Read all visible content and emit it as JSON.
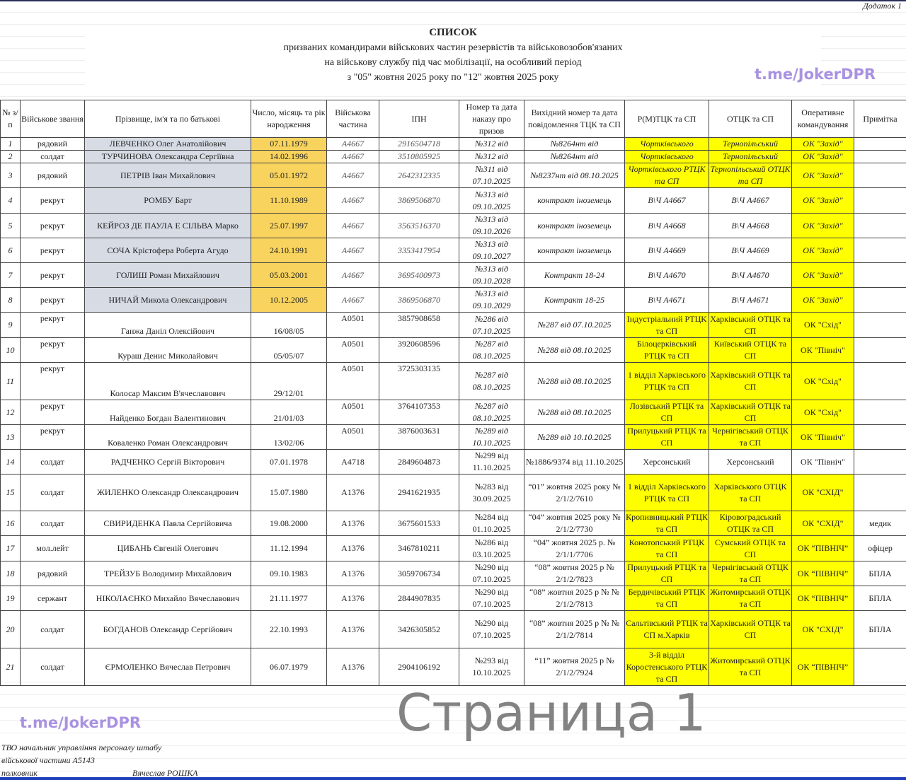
{
  "document": {
    "addendum": "Додаток 1",
    "title": "СПИСОК",
    "subtitle_lines": [
      "призваних командирами військових частин резервістів та військовозобов'язаних",
      "на військову службу під час мобілізації, на особливий період",
      "з \"05\" жовтня 2025 року по \"12\" жовтня 2025 року"
    ],
    "watermark_channel": "t.me/JokerDPR",
    "watermark_page": "Страница 1"
  },
  "colors": {
    "highlight_yellow": "#ffff00",
    "name_bg": "#d6dbe4",
    "dob_bg": "#f8d35e",
    "watermark": "#a992e0"
  },
  "table": {
    "headers": [
      "№ з/п",
      "Військове звання",
      "Прізвище, ім'я та по батькові",
      "Число, місяць та рік народження",
      "Військова частина",
      "ІПН",
      "Номер та дата наказу про призов",
      "Вихідний номер та дата повідомлення ТЦК та СП",
      "Р(М)ТЦК та СП",
      "ОТЦК та СП",
      "Оперативне командування",
      "Примітка"
    ],
    "rows": [
      {
        "cells": [
          "1",
          "рядовий",
          "ЛЕВЧЕНКО Олег Анатолійович",
          "07.11.1979",
          "А4667",
          "2916504718",
          "№312 від",
          "№8264нт від",
          "Чортківського",
          "Тернопільський",
          "ОК \"Захід\"",
          ""
        ],
        "highlight": [
          8,
          9,
          10
        ]
      },
      {
        "cells": [
          "2",
          "солдат",
          "ТУРЧИНОВА Олександра Сергіївна",
          "14.02.1996",
          "А4667",
          "3510805925",
          "№312 від",
          "№8264нт від",
          "Чортківського",
          "Тернопільський",
          "ОК \"Захід\"",
          ""
        ],
        "highlight": [
          8,
          9,
          10
        ]
      },
      {
        "cells": [
          "3",
          "рядовий",
          "ПЕТРІВ Іван Михайлович",
          "05.01.1972",
          "А4667",
          "2642312335",
          "№311 від 07.10.2025",
          "№8237нт від 08.10.2025",
          "Чортківського РТЦК та СП",
          "Тернопільський ОТЦК та СП",
          "ОК \"Захід\"",
          ""
        ],
        "highlight": [
          8,
          9,
          10
        ]
      },
      {
        "cells": [
          "4",
          "рекрут",
          "РОМБУ Барт",
          "11.10.1989",
          "А4667",
          "3869506870",
          "№313 від 09.10.2025",
          "контракт іноземець",
          "В\\Ч А4667",
          "В\\Ч А4667",
          "ОК \"Захід\"",
          ""
        ],
        "highlight": [
          10
        ]
      },
      {
        "cells": [
          "5",
          "рекрут",
          "КЕЙРОЗ ДЕ ПАУЛА Е СІЛЬВА Марко",
          "25.07.1997",
          "А4667",
          "3563516370",
          "№313 від 09.10.2026",
          "контракт іноземець",
          "В\\Ч А4668",
          "В\\Ч А4668",
          "ОК \"Захід\"",
          ""
        ],
        "highlight": [
          10
        ]
      },
      {
        "cells": [
          "6",
          "рекрут",
          "СОЧА Крістофера Роберта Агудо",
          "24.10.1991",
          "А4667",
          "3353417954",
          "№313 від 09.10.2027",
          "контракт іноземець",
          "В\\Ч А4669",
          "В\\Ч А4669",
          "ОК \"Захід\"",
          ""
        ],
        "highlight": [
          10
        ]
      },
      {
        "cells": [
          "7",
          "рекрут",
          "ГОЛИШ Роман Михайлович",
          "05.03.2001",
          "А4667",
          "3695400973",
          "№313 від 09.10.2028",
          "Контракт 18-24",
          "В\\Ч А4670",
          "В\\Ч А4670",
          "ОК \"Захід\"",
          ""
        ],
        "highlight": [
          10
        ]
      },
      {
        "cells": [
          "8",
          "рекрут",
          "НИЧАЙ Микола Олександрович",
          "10.12.2005",
          "А4667",
          "3869506870",
          "№313 від 09.10.2029",
          "Контракт 18-25",
          "В\\Ч А4671",
          "В\\Ч А4671",
          "ОК \"Захід\"",
          ""
        ],
        "highlight": [
          10
        ]
      },
      {
        "cells": [
          "9",
          "рекрут",
          "Ганжа Даніл Олексійович",
          "16/08/05",
          "А0501",
          "3857908658",
          "№286 від 07.10.2025",
          "№287 від 07.10.2025",
          "Індустріальний РТЦК та СП",
          "Харківський ОТЦК та СП",
          "ОК \"Схід\"",
          ""
        ],
        "highlight": [
          8,
          9,
          10
        ]
      },
      {
        "cells": [
          "10",
          "рекрут",
          "Кураш Денис Миколайович",
          "05/05/07",
          "А0501",
          "3920608596",
          "№287 від 08.10.2025",
          "№288 від 08.10.2025",
          "Білоцерківський РТЦК та СП",
          "Київський ОТЦК та СП",
          "ОК \"Північ\"",
          ""
        ],
        "highlight": [
          8,
          9,
          10
        ]
      },
      {
        "cells": [
          "11",
          "рекрут",
          "Колосар Максим В'ячеславович",
          "29/12/01",
          "А0501",
          "3725303135",
          "№287 від 08.10.2025",
          "№288 від 08.10.2025",
          "1 відділ Харківського РТЦК та СП",
          "Харківський ОТЦК та СП",
          "ОК \"Схід\"",
          ""
        ],
        "highlight": [
          8,
          9,
          10
        ]
      },
      {
        "cells": [
          "12",
          "рекрут",
          "Найденко Богдан Валентинович",
          "21/01/03",
          "А0501",
          "3764107353",
          "№287 від 08.10.2025",
          "№288 від 08.10.2025",
          "Лозівський РТЦК та СП",
          "Харківський ОТЦК та СП",
          "ОК \"Схід\"",
          ""
        ],
        "highlight": [
          8,
          9,
          10
        ]
      },
      {
        "cells": [
          "13",
          "рекрут",
          "Коваленко Роман Олександрович",
          "13/02/06",
          "А0501",
          "3876003631",
          "№289 від 10.10.2025",
          "№289 від 10.10.2025",
          "Прилуцький РТЦК та СП",
          "Чернігівський ОТЦК та СП",
          "ОК \"Північ\"",
          ""
        ],
        "highlight": [
          8,
          9,
          10
        ]
      },
      {
        "cells": [
          "14",
          "солдат",
          "РАДЧЕНКО Сергій Вікторович",
          "07.01.1978",
          "А4718",
          "2849604873",
          "№299 від 11.10.2025",
          "№1886/9374  від 11.10.2025",
          "Херсонський",
          "Херсонський",
          "ОК \"Північ\"",
          ""
        ],
        "highlight": []
      },
      {
        "cells": [
          "15",
          "солдат",
          "ЖИЛЕНКО Олександр Олександрович",
          "15.07.1980",
          "А1376",
          "2941621935",
          "№283 від 30.09.2025",
          "“01” жовтня 2025 року № 2/1/2/7610",
          "1 відділ Харківського РТЦК та СП",
          "Харківського ОТЦК та СП",
          "ОК \"СХІД\"",
          ""
        ],
        "highlight": [
          8,
          9,
          10
        ]
      },
      {
        "cells": [
          "16",
          "солдат",
          "СВИРИДЕНКА Павла Сергійовича",
          "19.08.2000",
          "А1376",
          "3675601533",
          "№284 від 01.10.2025",
          "“04” жовтня 2025 року № 2/1/2/7730",
          "Кропивницький РТЦК та СП",
          "Кіровоградський ОТЦК та СП",
          "ОК \"СХІД\"",
          "медик"
        ],
        "highlight": [
          8,
          9,
          10
        ]
      },
      {
        "cells": [
          "17",
          "мол.лейт",
          "ЦИБАНЬ Євгеній Олегович",
          "11.12.1994",
          "А1376",
          "3467810211",
          "№286 від 03.10.2025",
          "“04” жовтня 2025 р. № 2/1/1/7706",
          "Конотопський РТЦК та СП",
          "Сумський ОТЦК та СП",
          "ОК “ПІВНІЧ”",
          "офіцер"
        ],
        "highlight": [
          8,
          9,
          10
        ]
      },
      {
        "cells": [
          "18",
          "рядовий",
          "ТРЕЙЗУБ Володимир Михайлович",
          "09.10.1983",
          "А1376",
          "3059706734",
          "№290 від 07.10.2025",
          "“08” жовтня 2025 р № 2/1/2/7823",
          "Прилуцький РТЦК та СП",
          "Чернігівський ОТЦК та СП",
          "ОК “ПІВНІЧ”",
          "БПЛА"
        ],
        "highlight": [
          8,
          9,
          10
        ]
      },
      {
        "cells": [
          "19",
          "сержант",
          "НІКОЛАЄНКО Михайло Вячеславович",
          "21.11.1977",
          "А1376",
          "2844907835",
          "№290 від 07.10.2025",
          "“08” жовтня 2025 р № № 2/1/2/7813",
          "Бердичівський РТЦК та СП",
          "Житомирський ОТЦК та СП",
          "ОК “ПІВНІЧ”",
          "БПЛА"
        ],
        "highlight": [
          8,
          9,
          10
        ]
      },
      {
        "cells": [
          "20",
          "солдат",
          "БОГДАНОВ Олександр Сергійович",
          "22.10.1993",
          "А1376",
          "3426305852",
          "№290 від 07.10.2025",
          "“08” жовтня 2025 р № № 2/1/2/7814",
          "Сальтівський РТЦК та СП м.Харків",
          "Харківський ОТЦК та СП",
          "ОК \"СХІД\"",
          "БПЛА"
        ],
        "highlight": [
          8,
          9,
          10
        ]
      },
      {
        "cells": [
          "21",
          "солдат",
          "ЄРМОЛЕНКО Вячеслав Петрович",
          "06.07.1979",
          "А1376",
          "2904106192",
          "№293 від 10.10.2025",
          "“11” жовтня 2025 р № 2/1/2/7924",
          "3-й відділ Коростенського РТЦК та СП",
          "Житомирський ОТЦК та СП",
          "ОК “ПІВНІЧ”",
          ""
        ],
        "highlight": [
          8,
          9,
          10
        ]
      }
    ]
  },
  "footer": {
    "line1": "ТВО начальник управління персоналу штабу",
    "line2": "військової частини А5143",
    "rank": "полковник",
    "signatory": "Вячеслав РОШКА"
  }
}
